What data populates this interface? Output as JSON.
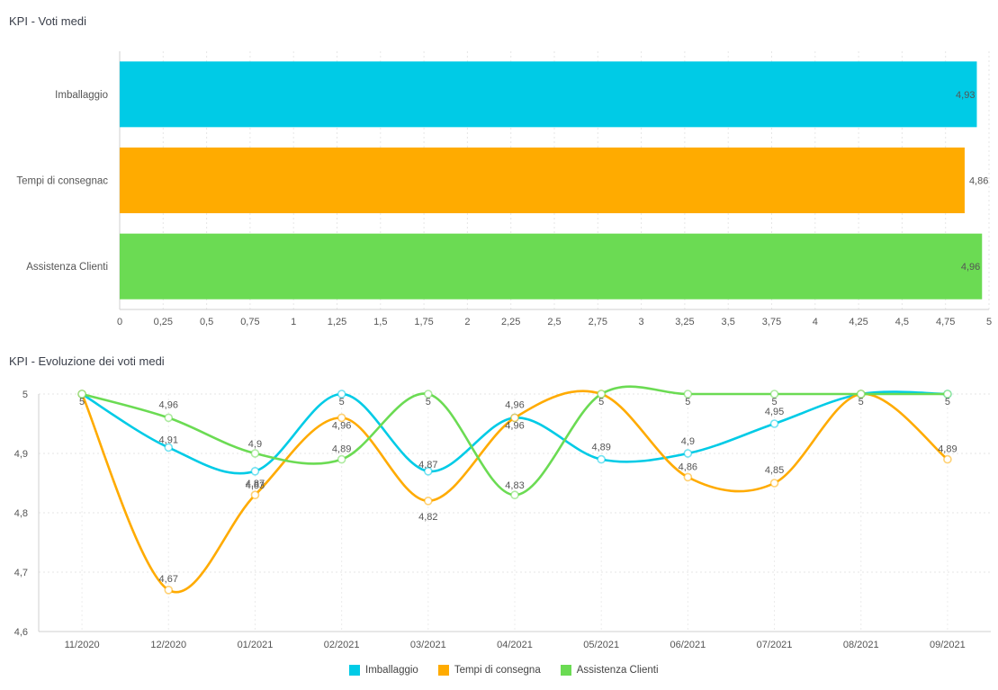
{
  "colors": {
    "imballaggio": "#00cbe6",
    "tempi": "#ffab00",
    "assistenza": "#6bdb53"
  },
  "chart_data": [
    {
      "type": "bar",
      "orientation": "horizontal",
      "title": "KPI - Voti medi",
      "categories": [
        "Imballaggio",
        "Tempi di consegnac",
        "Assistenza Clienti"
      ],
      "values": [
        4.93,
        4.86,
        4.96
      ],
      "value_labels": [
        "4,93",
        "4,86",
        "4,96"
      ],
      "colors": [
        "#00cbe6",
        "#ffab00",
        "#6bdb53"
      ],
      "xlim": [
        0,
        5
      ],
      "x_ticks": [
        "0",
        "0,25",
        "0,5",
        "0,75",
        "1",
        "1,25",
        "1,5",
        "1,75",
        "2",
        "2,25",
        "2,5",
        "2,75",
        "3",
        "3,25",
        "3,5",
        "3,75",
        "4",
        "4,25",
        "4,5",
        "4,75",
        "5"
      ],
      "grid": true
    },
    {
      "type": "line",
      "title": "KPI - Evoluzione dei voti medi",
      "x": [
        "11/2020",
        "12/2020",
        "01/2021",
        "02/2021",
        "03/2021",
        "04/2021",
        "05/2021",
        "06/2021",
        "07/2021",
        "08/2021",
        "09/2021"
      ],
      "ylim": [
        4.6,
        5
      ],
      "y_ticks": [
        "4,6",
        "4,7",
        "4,8",
        "4,9",
        "5"
      ],
      "grid": true,
      "legend_position": "bottom",
      "series": [
        {
          "name": "Imballaggio",
          "color": "#00cbe6",
          "values": [
            5,
            4.91,
            4.87,
            5,
            4.87,
            4.96,
            4.89,
            4.9,
            4.95,
            5,
            5
          ],
          "labels": [
            "5",
            "4,91",
            "4,87",
            "5",
            "4,87",
            "4,96",
            "4,89",
            "4,9",
            "4,95",
            "5",
            "5"
          ]
        },
        {
          "name": "Tempi di consegna",
          "color": "#ffab00",
          "values": [
            5,
            4.67,
            4.83,
            4.96,
            4.82,
            4.96,
            5,
            4.86,
            4.85,
            5,
            4.89
          ],
          "labels": [
            "5",
            "4,67",
            "4,83",
            "4,96",
            "4,82",
            "4,96",
            "5",
            "4,86",
            "4,85",
            "5",
            "4,89"
          ]
        },
        {
          "name": "Assistenza Clienti",
          "color": "#6bdb53",
          "values": [
            5,
            4.96,
            4.9,
            4.89,
            5,
            4.83,
            5,
            5,
            5,
            5,
            5
          ],
          "labels": [
            "5",
            "4,96",
            "4,9",
            "4,89",
            "5",
            "4,83",
            "5",
            "5",
            "5",
            "5",
            "5"
          ]
        }
      ]
    }
  ]
}
